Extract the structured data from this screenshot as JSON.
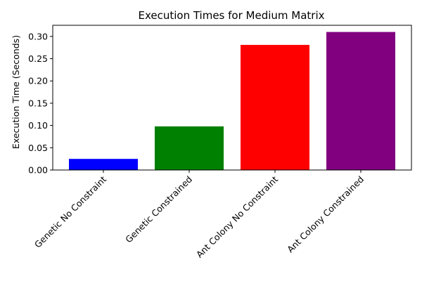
{
  "chart_data": {
    "type": "bar",
    "title": "Execution Times for Medium Matrix",
    "xlabel": "",
    "ylabel": "Execution Time (Seconds)",
    "categories": [
      "Genetic No Constraint",
      "Genetic Constrained",
      "Ant Colony No Constraint",
      "Ant Colony Constrained"
    ],
    "values": [
      0.025,
      0.098,
      0.281,
      0.31
    ],
    "colors": [
      "#0000ff",
      "#008000",
      "#ff0000",
      "#800080"
    ],
    "ylim": [
      0,
      0.325
    ],
    "yticks": [
      "0.00",
      "0.05",
      "0.10",
      "0.15",
      "0.20",
      "0.25",
      "0.30"
    ],
    "ytick_values": [
      0,
      0.05,
      0.1,
      0.15,
      0.2,
      0.25,
      0.3
    ],
    "grid": false,
    "legend": "none"
  }
}
